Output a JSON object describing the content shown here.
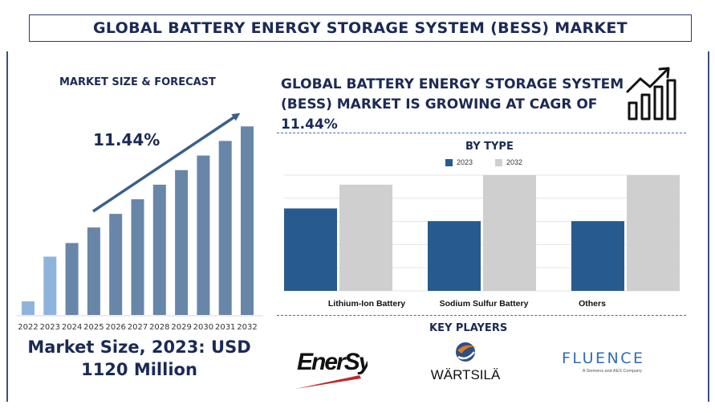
{
  "title": "GLOBAL BATTERY ENERGY STORAGE SYSTEM (BESS) MARKET",
  "left_panel": {
    "heading": "MARKET SIZE & FORECAST",
    "cagr": "11.44%",
    "market_size_line1": "Market Size, 2023: USD",
    "market_size_line2": "1120 Million"
  },
  "headline": "GLOBAL BATTERY ENERGY STORAGE SYSTEM (BESS) MARKET IS GROWING AT CAGR OF 11.44%",
  "by_type_heading": "BY TYPE",
  "key_players_heading": "KEY PLAYERS",
  "key_players": {
    "enersys": "EnerSys",
    "wartsila": "WÄRTSILÄ",
    "fluence": "FLUENCE",
    "fluence_tagline": "A Siemens and AES Company"
  },
  "colors": {
    "navy": "#1b2a55",
    "bar_light": "#8fb4dc",
    "bar_mid": "#6886a8",
    "series_2023": "#275b8f",
    "series_2032": "#cfcfcf",
    "enersys_red": "#c0272d",
    "fluence_blue": "#2e6db5",
    "wartsila_orange": "#e07a1e"
  },
  "chart_data": [
    {
      "type": "bar",
      "title": "MARKET SIZE & FORECAST",
      "categories": [
        "2022",
        "2023",
        "2024",
        "2025",
        "2026",
        "2027",
        "2028",
        "2029",
        "2030",
        "2031",
        "2032"
      ],
      "values": [
        0.7,
        3.0,
        3.7,
        4.5,
        5.2,
        5.95,
        6.7,
        7.45,
        8.2,
        8.95,
        9.7
      ],
      "ylim": [
        0,
        10
      ],
      "grid": false,
      "annotation": "11.44%",
      "highlighted": [
        "2022",
        "2023"
      ]
    },
    {
      "type": "bar",
      "title": "BY TYPE",
      "categories": [
        "Lithium-Ion Battery",
        "Sodium Sulfur Battery",
        "Others"
      ],
      "series": [
        {
          "name": "2023",
          "values": [
            104,
            88,
            88
          ]
        },
        {
          "name": "2032",
          "values": [
            134,
            146,
            146
          ]
        }
      ],
      "ylim": [
        0,
        146
      ],
      "grid": true,
      "legend": "top-center"
    }
  ]
}
